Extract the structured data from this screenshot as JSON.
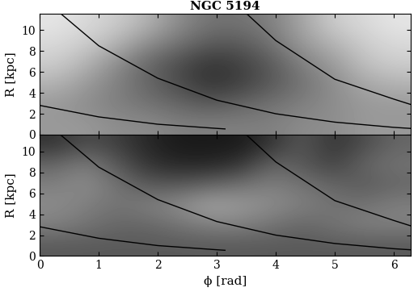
{
  "chart_data": [
    {
      "type": "heatmap",
      "title": "NGC 5194",
      "y_label": "R [kpc]",
      "tick_labels": "y",
      "xlim": [
        0,
        6.283
      ],
      "ylim": [
        0,
        11.6
      ],
      "xticks": [
        0,
        1,
        2,
        3,
        4,
        5,
        6
      ],
      "yticks": [
        0,
        2,
        4,
        6,
        8,
        10
      ],
      "cell_x_edges": [
        0,
        0.5236,
        1.0472,
        1.5708,
        2.0944,
        2.618,
        3.1416,
        3.6652,
        4.1888,
        4.7124,
        5.236,
        5.7596,
        6.2832
      ],
      "cell_y_edges": [
        0,
        1.933,
        3.867,
        5.8,
        7.733,
        9.667,
        11.6
      ],
      "cell_range": [
        0,
        1
      ],
      "cells": [
        [
          0.6,
          0.6,
          0.55,
          0.55,
          0.5,
          0.5,
          0.5,
          0.5,
          0.55,
          0.55,
          0.6,
          0.6
        ],
        [
          0.6,
          0.55,
          0.5,
          0.45,
          0.4,
          0.35,
          0.4,
          0.45,
          0.5,
          0.55,
          0.6,
          0.6
        ],
        [
          0.7,
          0.6,
          0.5,
          0.4,
          0.3,
          0.2,
          0.25,
          0.35,
          0.45,
          0.55,
          0.65,
          0.7
        ],
        [
          0.8,
          0.7,
          0.55,
          0.4,
          0.3,
          0.2,
          0.25,
          0.35,
          0.5,
          0.6,
          0.75,
          0.8
        ],
        [
          0.85,
          0.8,
          0.7,
          0.55,
          0.45,
          0.35,
          0.35,
          0.45,
          0.6,
          0.7,
          0.8,
          0.85
        ],
        [
          0.9,
          0.85,
          0.8,
          0.7,
          0.55,
          0.45,
          0.45,
          0.5,
          0.65,
          0.8,
          0.85,
          0.9
        ]
      ],
      "series": [
        {
          "color": "#000000",
          "x": [
            0,
            1,
            2,
            3,
            3.14
          ],
          "values": [
            2.8,
            1.7,
            1.0,
            0.6,
            0.55
          ]
        },
        {
          "color": "#000000",
          "x": [
            0.35,
            1,
            2,
            3,
            4,
            5,
            6,
            6.28
          ],
          "values": [
            11.6,
            8.5,
            5.4,
            3.3,
            2.0,
            1.2,
            0.7,
            0.6
          ]
        },
        {
          "color": "#000000",
          "x": [
            3.5,
            4,
            5,
            6,
            6.28
          ],
          "values": [
            11.6,
            9.0,
            5.3,
            3.4,
            2.9
          ]
        }
      ]
    },
    {
      "type": "heatmap",
      "x_label": "ϕ [rad]",
      "y_label": "R [kpc]",
      "xlim": [
        0,
        6.283
      ],
      "ylim": [
        0,
        11.6
      ],
      "xticks": [
        0,
        1,
        2,
        3,
        4,
        5,
        6
      ],
      "yticks": [
        0,
        2,
        4,
        6,
        8,
        10
      ],
      "cell_x_edges": [
        0,
        0.5236,
        1.0472,
        1.5708,
        2.0944,
        2.618,
        3.1416,
        3.6652,
        4.1888,
        4.7124,
        5.236,
        5.7596,
        6.2832
      ],
      "cell_y_edges": [
        0,
        1.933,
        3.867,
        5.8,
        7.733,
        9.667,
        11.6
      ],
      "cell_range": [
        0,
        1
      ],
      "cells": [
        [
          0.35,
          0.35,
          0.35,
          0.35,
          0.35,
          0.35,
          0.35,
          0.35,
          0.35,
          0.35,
          0.35,
          0.35
        ],
        [
          0.5,
          0.45,
          0.4,
          0.4,
          0.45,
          0.5,
          0.5,
          0.45,
          0.4,
          0.45,
          0.5,
          0.5
        ],
        [
          0.55,
          0.5,
          0.45,
          0.5,
          0.55,
          0.65,
          0.6,
          0.55,
          0.5,
          0.45,
          0.45,
          0.5
        ],
        [
          0.5,
          0.55,
          0.45,
          0.35,
          0.35,
          0.4,
          0.45,
          0.5,
          0.45,
          0.4,
          0.35,
          0.4
        ],
        [
          0.4,
          0.5,
          0.35,
          0.2,
          0.15,
          0.15,
          0.2,
          0.4,
          0.35,
          0.25,
          0.4,
          0.45
        ],
        [
          0.2,
          0.3,
          0.25,
          0.15,
          0.1,
          0.1,
          0.1,
          0.2,
          0.35,
          0.2,
          0.3,
          0.4
        ]
      ],
      "series": [
        {
          "color": "#000000",
          "x": [
            0,
            1,
            2,
            3,
            3.14
          ],
          "values": [
            2.8,
            1.7,
            1.0,
            0.6,
            0.55
          ]
        },
        {
          "color": "#000000",
          "x": [
            0.35,
            1,
            2,
            3,
            4,
            5,
            6,
            6.28
          ],
          "values": [
            11.6,
            8.5,
            5.4,
            3.3,
            2.0,
            1.2,
            0.7,
            0.6
          ]
        },
        {
          "color": "#000000",
          "x": [
            3.5,
            4,
            5,
            6,
            6.28
          ],
          "values": [
            11.6,
            9.0,
            5.3,
            3.4,
            2.9
          ]
        }
      ]
    }
  ]
}
